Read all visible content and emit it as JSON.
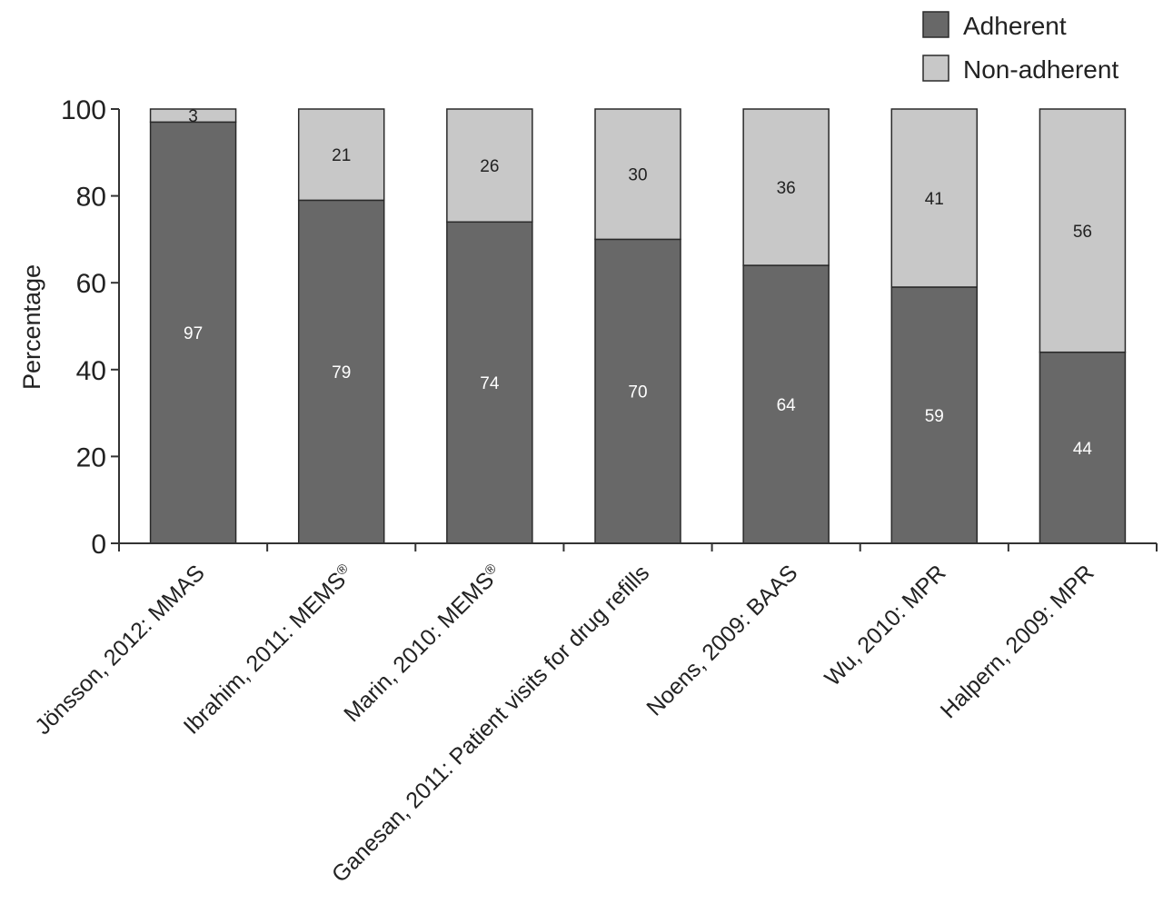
{
  "chart_data": {
    "type": "bar",
    "stacked": true,
    "ylabel": "Percentage",
    "xlabel": "",
    "ylim": [
      0,
      100
    ],
    "yticks": [
      0,
      20,
      40,
      60,
      80,
      100
    ],
    "legend_position": "top-right",
    "categories": [
      "Jönsson, 2012: MMAS",
      "Ibrahim, 2011: MEMS®",
      "Marin, 2010: MEMS®",
      "Ganesan, 2011: Patient visits for drug refills",
      "Noens, 2009: BAAS",
      "Wu, 2010: MPR",
      "Halpern, 2009: MPR"
    ],
    "series": [
      {
        "name": "Adherent",
        "values": [
          97,
          79,
          74,
          70,
          64,
          59,
          44
        ],
        "color": "#686868",
        "label_color": "#ffffff"
      },
      {
        "name": "Non-adherent",
        "values": [
          3,
          21,
          26,
          30,
          36,
          41,
          56
        ],
        "color": "#c8c8c8",
        "label_color": "#222222"
      }
    ]
  }
}
